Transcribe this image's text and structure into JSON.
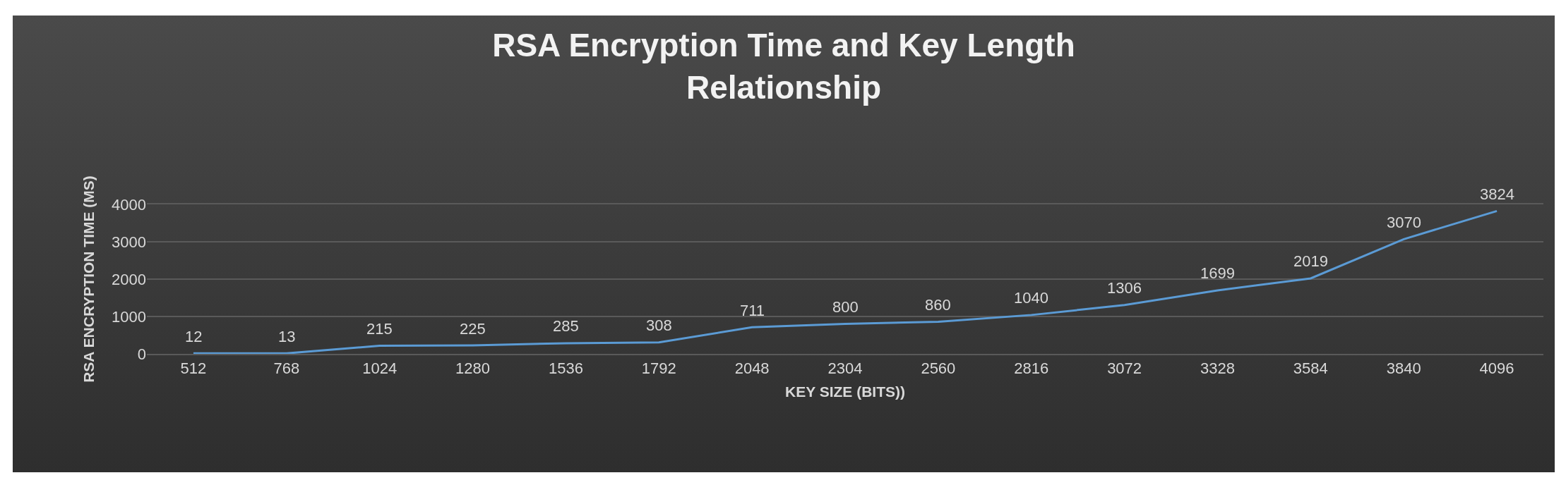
{
  "chart_data": {
    "type": "line",
    "title": "RSA Encryption Time and Key Length\nRelationship",
    "xlabel": "KEY SIZE (BITS))",
    "ylabel": "RSA ENCRYPTION TIME (MS)",
    "categories": [
      "512",
      "768",
      "1024",
      "1280",
      "1536",
      "1792",
      "2048",
      "2304",
      "2560",
      "2816",
      "3072",
      "3328",
      "3584",
      "3840",
      "4096"
    ],
    "series": [
      {
        "color": "#5b9bd5",
        "values": [
          12,
          13,
          215,
          225,
          285,
          308,
          711,
          800,
          860,
          1040,
          1306,
          1699,
          2019,
          3070,
          3824
        ]
      }
    ],
    "ylim": [
      0,
      4000
    ],
    "yticks": [
      0,
      1000,
      2000,
      3000,
      4000
    ],
    "grid": "y",
    "marker": "none",
    "line_style": "solid",
    "data_labels": true
  }
}
